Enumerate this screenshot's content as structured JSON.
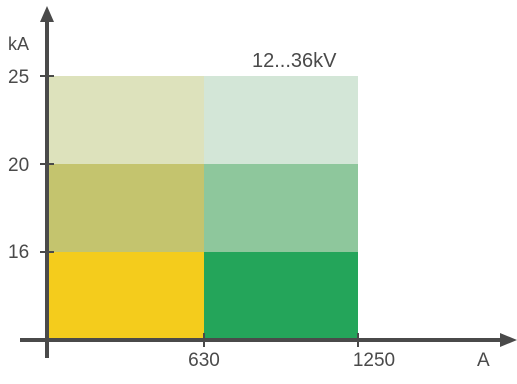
{
  "chart_data": {
    "type": "heatmap",
    "annotation": "12...36kV",
    "x_unit": "A",
    "y_unit": "kA",
    "x_ticks": [
      "630",
      "1250"
    ],
    "y_ticks": [
      "25",
      "20",
      "16"
    ],
    "xlim": [
      0,
      1250
    ],
    "ylim": [
      0,
      25
    ],
    "cells": [
      {
        "x0": 0,
        "x1": 630,
        "y0": 0,
        "y1": 16,
        "color": "#f4cc1c"
      },
      {
        "x0": 0,
        "x1": 630,
        "y0": 16,
        "y1": 20,
        "color": "#c4c46e"
      },
      {
        "x0": 0,
        "x1": 630,
        "y0": 20,
        "y1": 25,
        "color": "#dde2bc"
      },
      {
        "x0": 630,
        "x1": 1250,
        "y0": 0,
        "y1": 16,
        "color": "#24a55a"
      },
      {
        "x0": 630,
        "x1": 1250,
        "y0": 16,
        "y1": 20,
        "color": "#8ec79c"
      },
      {
        "x0": 630,
        "x1": 1250,
        "y0": 20,
        "y1": 25,
        "color": "#d3e6d7"
      }
    ],
    "grid": false,
    "axis_color": "#4a4a4a"
  }
}
